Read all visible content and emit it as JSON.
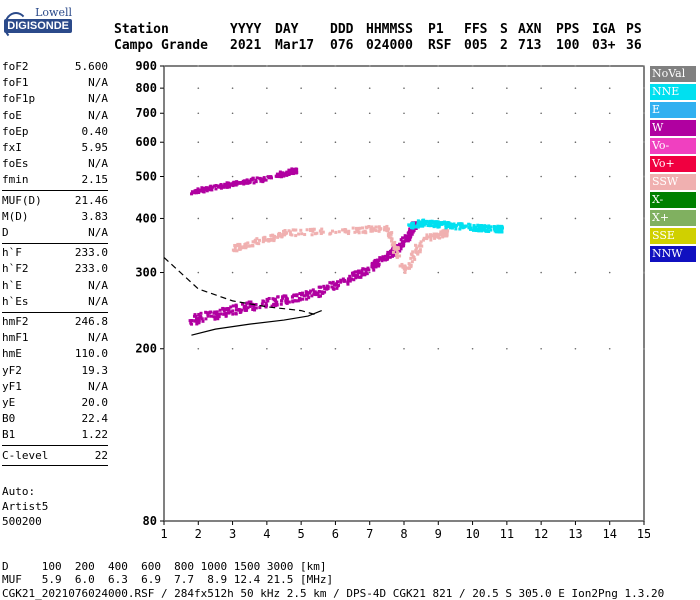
{
  "logo": {
    "top": "Lowell",
    "bottom": "DIGISONDE"
  },
  "header": {
    "station_label": "Station",
    "station_name": "Campo Grande",
    "cols": [
      {
        "label": "YYYY",
        "value": "2021"
      },
      {
        "label": "DAY",
        "value": "Mar17"
      },
      {
        "label": "DDD",
        "value": "076"
      },
      {
        "label": "HHMMSS",
        "value": "024000"
      },
      {
        "label": "P1",
        "value": "RSF"
      },
      {
        "label": "FFS",
        "value": "005"
      },
      {
        "label": "S",
        "value": "2"
      },
      {
        "label": "AXN",
        "value": "713"
      },
      {
        "label": "PPS",
        "value": "100"
      },
      {
        "label": "IGA",
        "value": "03+"
      },
      {
        "label": "PS",
        "value": "36"
      }
    ]
  },
  "params": [
    [
      {
        "k": "foF2",
        "v": "5.600"
      },
      {
        "k": "foF1",
        "v": "N/A"
      },
      {
        "k": "foF1p",
        "v": "N/A"
      },
      {
        "k": "foE",
        "v": "N/A"
      },
      {
        "k": "foEp",
        "v": "0.40"
      },
      {
        "k": "fxI",
        "v": "5.95"
      },
      {
        "k": "foEs",
        "v": "N/A"
      },
      {
        "k": "fmin",
        "v": "2.15"
      }
    ],
    [
      {
        "k": "MUF(D)",
        "v": "21.46"
      },
      {
        "k": "M(D)",
        "v": "3.83"
      },
      {
        "k": "D",
        "v": "N/A"
      }
    ],
    [
      {
        "k": "h`F",
        "v": "233.0"
      },
      {
        "k": "h`F2",
        "v": "233.0"
      },
      {
        "k": "h`E",
        "v": "N/A"
      },
      {
        "k": "h`Es",
        "v": "N/A"
      }
    ],
    [
      {
        "k": "hmF2",
        "v": "246.8"
      },
      {
        "k": "hmF1",
        "v": "N/A"
      },
      {
        "k": "hmE",
        "v": "110.0"
      },
      {
        "k": "yF2",
        "v": "19.3"
      },
      {
        "k": "yF1",
        "v": "N/A"
      },
      {
        "k": "yE",
        "v": "20.0"
      },
      {
        "k": "B0",
        "v": "22.4"
      },
      {
        "k": "B1",
        "v": "1.22"
      }
    ],
    [
      {
        "k": "C-level",
        "v": "22"
      }
    ]
  ],
  "auto": [
    "Auto:",
    "Artist5",
    "500200"
  ],
  "legend": [
    {
      "label": "NoVal",
      "color": "#808080"
    },
    {
      "label": "NNE",
      "color": "#00e0f0"
    },
    {
      "label": "E",
      "color": "#30b0f0"
    },
    {
      "label": "W",
      "color": "#b000a0"
    },
    {
      "label": "Vo-",
      "color": "#f040c0"
    },
    {
      "label": "Vo+",
      "color": "#f00040"
    },
    {
      "label": "SSW",
      "color": "#f0b0b0"
    },
    {
      "label": "X-",
      "color": "#008000"
    },
    {
      "label": "X+",
      "color": "#80b060"
    },
    {
      "label": "SSE",
      "color": "#d0d000"
    },
    {
      "label": "NNW",
      "color": "#1010c0"
    }
  ],
  "footer": {
    "d_line": "D     100  200  400  600  800 1000 1500 3000 [km]",
    "muf_line": "MUF   5.9  6.0  6.3  6.9  7.7  8.9 12.4 21.5 [MHz]",
    "file_line": "CGK21_2021076024000.RSF / 284fx512h 50 kHz 2.5 km / DPS-4D CGK21 821 / 20.5 S 305.0 E Ion2Png 1.3.20"
  },
  "chart_data": {
    "type": "scatter",
    "x_ticks": [
      "1",
      "2",
      "3",
      "4",
      "5",
      "6",
      "7",
      "8",
      "9",
      "10",
      "11",
      "12",
      "13",
      "14",
      "15"
    ],
    "y_ticks": [
      "80",
      "200",
      "300",
      "400",
      "500",
      "600",
      "700",
      "800",
      "900"
    ],
    "xlim": [
      1,
      15
    ],
    "ylim": [
      80,
      900
    ],
    "y_scale": "log",
    "x_unit": "MHz",
    "y_unit": "km",
    "series": [
      {
        "name": "W",
        "color": "#b000a0",
        "x": [
          1.8,
          2.5,
          3.2,
          4.0,
          4.8,
          5.5,
          6.2,
          6.8,
          7.3,
          7.8,
          8.1,
          8.3
        ],
        "y": [
          233,
          240,
          248,
          255,
          262,
          270,
          285,
          300,
          318,
          340,
          360,
          385
        ]
      },
      {
        "name": "W-echo",
        "color": "#b000a0",
        "x": [
          1.8,
          2.5,
          3.2,
          4.0,
          4.8
        ],
        "y": [
          460,
          472,
          483,
          495,
          515
        ]
      },
      {
        "name": "SSW",
        "color": "#f0b0b0",
        "x": [
          3.0,
          3.8,
          4.6,
          6.5,
          7.5,
          8.0,
          8.6,
          9.2
        ],
        "y": [
          340,
          355,
          370,
          375,
          380,
          300,
          360,
          370
        ]
      },
      {
        "name": "NNE",
        "color": "#00e0f0",
        "x": [
          8.2,
          8.6,
          9.0,
          9.6,
          10.2,
          10.8
        ],
        "y": [
          385,
          392,
          388,
          384,
          380,
          378
        ]
      }
    ],
    "curves": [
      {
        "name": "dashed",
        "x": [
          1.0,
          2.0,
          3.0,
          4.0,
          5.0,
          5.4
        ],
        "y": [
          325,
          275,
          258,
          250,
          245,
          240
        ]
      },
      {
        "name": "solid",
        "x": [
          1.8,
          2.5,
          3.5,
          4.5,
          5.2,
          5.6
        ],
        "y": [
          215,
          222,
          228,
          233,
          238,
          245
        ]
      }
    ]
  }
}
